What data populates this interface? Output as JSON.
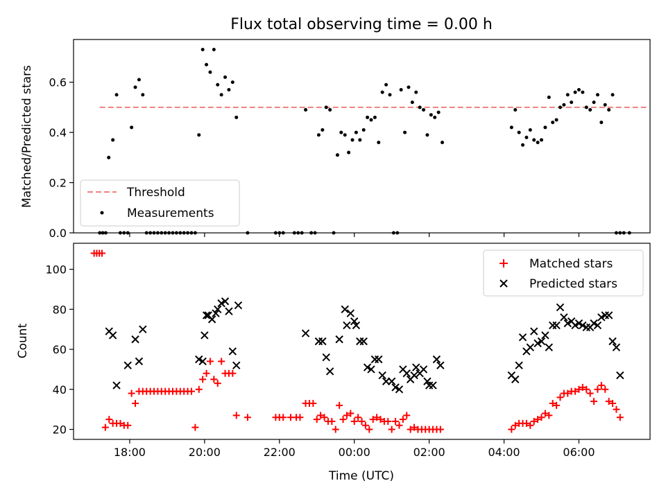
{
  "chart_data": [
    {
      "type": "scatter",
      "title": "Flux total observing time = 0.00 h",
      "xlabel": "",
      "ylabel": "Matched/Predicted stars",
      "xlim": [
        16.5,
        31.9
      ],
      "ylim": [
        0.0,
        0.77
      ],
      "yticks": [
        0.0,
        0.2,
        0.4,
        0.6
      ],
      "xticks": [
        18,
        20,
        22,
        24,
        26,
        28,
        30
      ],
      "legend_position": "lower-left",
      "series": [
        {
          "name": "Threshold",
          "kind": "dashed-line",
          "color": "#f08080",
          "x": [
            17.2,
            31.8
          ],
          "y": [
            0.5,
            0.5
          ]
        },
        {
          "name": "Measurements",
          "kind": "dots",
          "color": "#000000",
          "x": [
            17.2,
            17.28,
            17.36,
            17.44,
            17.55,
            17.65,
            17.75,
            17.85,
            17.95,
            18.05,
            18.15,
            18.25,
            18.35,
            18.45,
            18.55,
            18.65,
            18.75,
            18.85,
            18.95,
            19.05,
            19.15,
            19.25,
            19.35,
            19.45,
            19.55,
            19.65,
            19.75,
            19.85,
            19.95,
            20.05,
            20.15,
            20.25,
            20.35,
            20.45,
            20.55,
            20.65,
            20.75,
            20.85,
            21.15,
            21.9,
            22.0,
            22.1,
            22.4,
            22.5,
            22.6,
            22.7,
            22.85,
            22.95,
            23.05,
            23.15,
            23.25,
            23.35,
            23.45,
            23.55,
            23.65,
            23.75,
            23.85,
            23.95,
            24.05,
            24.15,
            24.25,
            24.35,
            24.45,
            24.55,
            24.65,
            24.75,
            24.85,
            24.95,
            25.05,
            25.15,
            25.25,
            25.35,
            25.45,
            25.55,
            25.65,
            25.75,
            25.85,
            25.95,
            26.05,
            26.15,
            26.25,
            26.35,
            28.2,
            28.3,
            28.4,
            28.5,
            28.6,
            28.7,
            28.8,
            28.9,
            29.0,
            29.1,
            29.2,
            29.3,
            29.4,
            29.5,
            29.6,
            29.7,
            29.8,
            29.9,
            30.0,
            30.1,
            30.2,
            30.3,
            30.4,
            30.5,
            30.6,
            30.7,
            30.8,
            30.9,
            31.0,
            31.1,
            31.2,
            31.35
          ],
          "y": [
            0.0,
            0.0,
            0.0,
            0.3,
            0.37,
            0.55,
            0.0,
            0.0,
            0.0,
            0.42,
            0.58,
            0.61,
            0.55,
            0.0,
            0.0,
            0.0,
            0.0,
            0.0,
            0.0,
            0.0,
            0.0,
            0.0,
            0.0,
            0.0,
            0.0,
            0.0,
            0.0,
            0.39,
            0.73,
            0.67,
            0.64,
            0.73,
            0.59,
            0.55,
            0.62,
            0.57,
            0.6,
            0.46,
            0.0,
            0.0,
            0.0,
            0.0,
            0.0,
            0.0,
            0.0,
            0.49,
            0.0,
            0.0,
            0.39,
            0.41,
            0.5,
            0.49,
            0.0,
            0.31,
            0.4,
            0.39,
            0.32,
            0.37,
            0.4,
            0.37,
            0.41,
            0.46,
            0.45,
            0.46,
            0.36,
            0.56,
            0.59,
            0.55,
            0.0,
            0.0,
            0.57,
            0.4,
            0.58,
            0.52,
            0.56,
            0.5,
            0.49,
            0.39,
            0.47,
            0.46,
            0.48,
            0.36,
            0.42,
            0.49,
            0.4,
            0.35,
            0.38,
            0.41,
            0.37,
            0.36,
            0.37,
            0.42,
            0.54,
            0.44,
            0.45,
            0.5,
            0.51,
            0.55,
            0.52,
            0.56,
            0.57,
            0.56,
            0.5,
            0.49,
            0.52,
            0.55,
            0.44,
            0.51,
            0.49,
            0.55,
            0.0,
            0.0,
            0.0,
            0.0
          ],
          "y_note_skip": []
        }
      ]
    },
    {
      "type": "scatter",
      "title": "",
      "xlabel": "Time (UTC)",
      "ylabel": "Count",
      "xlim": [
        16.5,
        31.9
      ],
      "ylim": [
        15,
        113
      ],
      "yticks": [
        20,
        40,
        60,
        80,
        100
      ],
      "xticks": [
        18,
        20,
        22,
        24,
        26,
        28,
        30
      ],
      "xtick_labels": [
        "18:00",
        "20:00",
        "22:00",
        "00:00",
        "02:00",
        "04:00",
        "06:00"
      ],
      "legend_position": "upper-right",
      "series": [
        {
          "name": "Matched stars",
          "kind": "plus",
          "color": "#ff0000",
          "x": [
            17.05,
            17.12,
            17.19,
            17.26,
            17.35,
            17.45,
            17.55,
            17.65,
            17.75,
            17.85,
            17.95,
            18.05,
            18.15,
            18.25,
            18.35,
            18.45,
            18.55,
            18.65,
            18.75,
            18.85,
            18.95,
            19.05,
            19.15,
            19.25,
            19.35,
            19.45,
            19.55,
            19.65,
            19.75,
            19.85,
            19.95,
            20.05,
            20.15,
            20.25,
            20.35,
            20.45,
            20.55,
            20.65,
            20.75,
            20.85,
            21.15,
            21.9,
            22.0,
            22.1,
            22.3,
            22.45,
            22.55,
            22.7,
            22.8,
            22.9,
            23.0,
            23.1,
            23.2,
            23.3,
            23.4,
            23.5,
            23.6,
            23.7,
            23.8,
            23.9,
            24.0,
            24.1,
            24.2,
            24.3,
            24.4,
            24.5,
            24.6,
            24.7,
            24.8,
            24.9,
            25.0,
            25.1,
            25.2,
            25.3,
            25.4,
            25.5,
            25.6,
            25.7,
            25.8,
            25.9,
            26.0,
            26.1,
            26.2,
            26.3,
            28.2,
            28.3,
            28.4,
            28.5,
            28.6,
            28.7,
            28.8,
            28.9,
            29.0,
            29.1,
            29.2,
            29.3,
            29.4,
            29.5,
            29.6,
            29.7,
            29.8,
            29.9,
            30.0,
            30.1,
            30.2,
            30.3,
            30.4,
            30.5,
            30.6,
            30.7,
            30.8,
            30.9,
            31.0,
            31.1
          ],
          "y": [
            108,
            108,
            108,
            108,
            21,
            25,
            23,
            23,
            23,
            22,
            22,
            38,
            33,
            39,
            39,
            39,
            39,
            39,
            39,
            39,
            39,
            39,
            39,
            39,
            39,
            39,
            39,
            39,
            21,
            40,
            45,
            48,
            54,
            45,
            43,
            54,
            48,
            48,
            48,
            27,
            26,
            26,
            26,
            26,
            26,
            26,
            26,
            33,
            33,
            33,
            25,
            27,
            26,
            24,
            24,
            20,
            32,
            25,
            27,
            28,
            24,
            26,
            24,
            22,
            20,
            25,
            26,
            25,
            24,
            24,
            20,
            24,
            22,
            25,
            27,
            20,
            21,
            20,
            20,
            20,
            20,
            20,
            20,
            20,
            20,
            22,
            23,
            23,
            23,
            22,
            24,
            25,
            26,
            28,
            27,
            33,
            32,
            36,
            38,
            38,
            39,
            39,
            40,
            41,
            40,
            38,
            34,
            40,
            42,
            40,
            34,
            33,
            30,
            26
          ],
          "y_note_skip": []
        },
        {
          "name": "Predicted stars",
          "kind": "x",
          "color": "#000000",
          "x": [
            17.45,
            17.55,
            17.65,
            17.95,
            18.15,
            18.25,
            18.35,
            19.85,
            19.95,
            20.0,
            20.05,
            20.1,
            20.2,
            20.3,
            20.35,
            20.45,
            20.55,
            20.65,
            20.75,
            20.85,
            20.9,
            22.7,
            23.05,
            23.15,
            23.25,
            23.35,
            23.6,
            23.75,
            23.8,
            23.9,
            24.0,
            24.05,
            24.15,
            24.25,
            24.35,
            24.45,
            24.55,
            24.65,
            24.75,
            24.85,
            25.0,
            25.1,
            25.2,
            25.3,
            25.4,
            25.5,
            25.6,
            25.65,
            25.75,
            25.85,
            25.95,
            26.0,
            26.1,
            26.2,
            26.3,
            28.2,
            28.3,
            28.4,
            28.5,
            28.6,
            28.7,
            28.8,
            28.9,
            29.0,
            29.1,
            29.2,
            29.3,
            29.4,
            29.5,
            29.6,
            29.7,
            29.8,
            29.9,
            30.0,
            30.1,
            30.2,
            30.3,
            30.4,
            30.5,
            30.6,
            30.7,
            30.8,
            30.9,
            31.0,
            31.1
          ],
          "y": [
            69,
            67,
            42,
            52,
            65,
            54,
            70,
            55,
            54,
            67,
            77,
            77,
            75,
            78,
            80,
            83,
            84,
            79,
            59,
            52,
            82,
            68,
            64,
            64,
            56,
            49,
            65,
            80,
            72,
            78,
            74,
            72,
            64,
            64,
            51,
            50,
            55,
            55,
            47,
            44,
            44,
            41,
            40,
            50,
            48,
            45,
            47,
            51,
            48,
            50,
            44,
            42,
            42,
            55,
            52,
            47,
            45,
            52,
            66,
            59,
            61,
            69,
            63,
            64,
            67,
            61,
            72,
            72,
            81,
            76,
            73,
            74,
            72,
            73,
            72,
            71,
            71,
            73,
            72,
            76,
            77,
            77,
            64,
            61,
            47
          ],
          "y_note_skip": []
        }
      ]
    }
  ]
}
